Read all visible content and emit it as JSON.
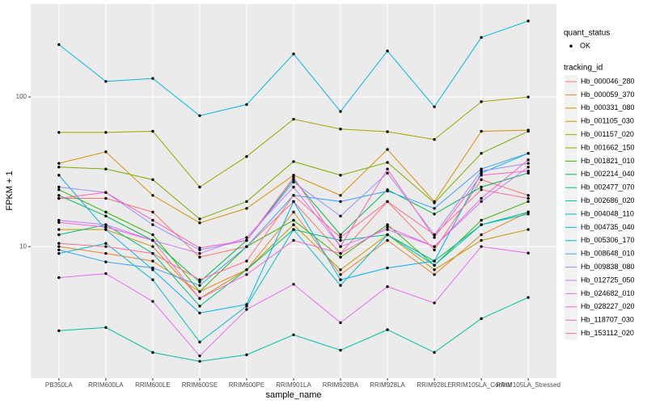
{
  "chart_data": {
    "type": "line",
    "x_label": "sample_name",
    "y_label": "FPKM + 1",
    "log_y": true,
    "grid": true,
    "legend_position": "right",
    "point_legend_title": "quant_status",
    "point_legend_label": "OK",
    "point_color": "#000000",
    "legend_title": "tracking_id",
    "categories": [
      "PB350LA",
      "RRIM600LA",
      "RRIM600LE",
      "RRIM600SE",
      "RRIM600PE",
      "RRIM901LA",
      "RRIM928BA",
      "RRIM928LA",
      "RRIM928LE",
      "RRIM105LA_Control",
      "RRIM105LA_Stressed"
    ],
    "ylim": [
      1.32,
      418
    ],
    "yticks": [
      10,
      100
    ],
    "series": [
      {
        "name": "Hb_000046_280",
        "color": "#F8766D",
        "values": [
          21,
          21,
          17,
          8.5,
          10,
          20,
          9,
          20,
          9.5,
          28,
          22
        ]
      },
      {
        "name": "Hb_000059_370",
        "color": "#EA8331",
        "values": [
          10,
          9,
          8,
          5,
          7,
          17,
          6.5,
          11,
          6.5,
          12,
          17
        ]
      },
      {
        "name": "Hb_000331_080",
        "color": "#D89000",
        "values": [
          36,
          43,
          22,
          14.4,
          18,
          30,
          22,
          44.6,
          20,
          59,
          60
        ]
      },
      {
        "name": "Hb_001105_030",
        "color": "#C09B00",
        "values": [
          13,
          13,
          10,
          4.5,
          7,
          14,
          7,
          12,
          7,
          11,
          13
        ]
      },
      {
        "name": "Hb_001157_020",
        "color": "#A3A500",
        "values": [
          58,
          58,
          59,
          25,
          40,
          71,
          61,
          58.6,
          52,
          93,
          100
        ]
      },
      {
        "name": "Hb_001662_150",
        "color": "#7CAE00",
        "values": [
          34,
          33,
          28,
          15.3,
          20,
          37,
          30,
          36.5,
          19.6,
          42,
          59
        ]
      },
      {
        "name": "Hb_001821_010",
        "color": "#39B600",
        "values": [
          24,
          17,
          12,
          5,
          10,
          15,
          8.5,
          14,
          7.5,
          15,
          20
        ]
      },
      {
        "name": "Hb_002214_040",
        "color": "#00BB4E",
        "values": [
          22,
          16,
          11,
          5.8,
          11,
          28,
          12,
          24,
          16.5,
          25,
          31
        ]
      },
      {
        "name": "Hb_002477_070",
        "color": "#00BF7D",
        "values": [
          12,
          14,
          9,
          4,
          7,
          13,
          11,
          12,
          8,
          14,
          17
        ]
      },
      {
        "name": "Hb_002686_020",
        "color": "#00C1A3",
        "values": [
          2.74,
          2.88,
          1.96,
          1.71,
          1.89,
          2.57,
          2.03,
          2.78,
          1.96,
          3.3,
          4.57
        ]
      },
      {
        "name": "Hb_004048_110",
        "color": "#00BFC4",
        "values": [
          9,
          10.5,
          6,
          2.3,
          4,
          13,
          5.5,
          12,
          7.5,
          14,
          16.5
        ]
      },
      {
        "name": "Hb_004735_040",
        "color": "#00BAE0",
        "values": [
          224,
          127,
          133,
          75,
          89,
          194,
          80,
          203,
          86,
          250,
          322
        ]
      },
      {
        "name": "Hb_005306_170",
        "color": "#00B0F6",
        "values": [
          30,
          13,
          7,
          3.6,
          4.1,
          20,
          6,
          7.2,
          8,
          31,
          42
        ]
      },
      {
        "name": "Hb_008648_010",
        "color": "#35A2FF",
        "values": [
          9.5,
          7.9,
          7.2,
          5.5,
          10,
          22,
          20,
          23.5,
          18,
          33,
          42
        ]
      },
      {
        "name": "Hb_009838_080",
        "color": "#9590FF",
        "values": [
          25,
          23,
          14,
          9.5,
          11,
          27,
          16,
          31,
          12,
          32,
          36
        ]
      },
      {
        "name": "Hb_012725_050",
        "color": "#C77CFF",
        "values": [
          15,
          14,
          11,
          9,
          11.5,
          25,
          10,
          13,
          10,
          20,
          34
        ]
      },
      {
        "name": "Hb_024682_010",
        "color": "#E76BF3",
        "values": [
          6.2,
          6.6,
          4.3,
          1.86,
          3.8,
          5.6,
          3.1,
          5.4,
          4.2,
          10,
          9.05
        ]
      },
      {
        "name": "Hb_028227_020",
        "color": "#FA62DB",
        "values": [
          14.5,
          13.5,
          11,
          4.5,
          6.5,
          11,
          9,
          13.5,
          10,
          21,
          38
        ]
      },
      {
        "name": "Hb_118707_030",
        "color": "#FF62BC",
        "values": [
          21,
          23,
          15,
          9.8,
          11,
          29,
          10,
          33,
          11.5,
          30,
          32
        ]
      },
      {
        "name": "Hb_153112_020",
        "color": "#FF6C91",
        "values": [
          10.5,
          10,
          9,
          6,
          8,
          22,
          11.5,
          20,
          12,
          24,
          21
        ]
      }
    ]
  }
}
